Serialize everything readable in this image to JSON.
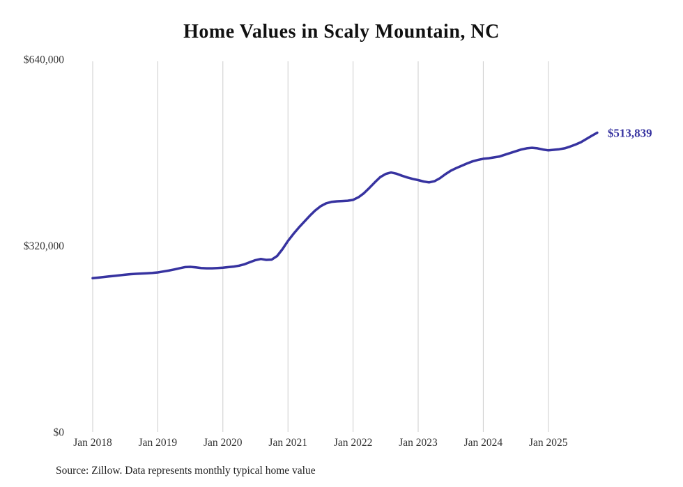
{
  "chart_data": {
    "type": "line",
    "title": "Home Values in Scaly Mountain, NC",
    "source_note": "Source: Zillow. Data represents monthly typical home value",
    "end_label": "$513,839",
    "line_color": "#3733a0",
    "grid_color": "#cccccc",
    "tick_color": "#333333",
    "x_tick_labels": [
      "Jan 2018",
      "Jan 2019",
      "Jan 2020",
      "Jan 2021",
      "Jan 2022",
      "Jan 2023",
      "Jan 2024",
      "Jan 2025"
    ],
    "y_tick_labels": [
      "$640,000",
      "$320,000",
      "$0"
    ],
    "y_ticks": [
      640000,
      320000,
      0
    ],
    "ylim": [
      0,
      640000
    ],
    "grid": "vertical-only",
    "legend": "none",
    "frequency": "monthly",
    "x_start": "2018-01",
    "x_end": "2025-10",
    "series": [
      {
        "name": "Typical home value",
        "values": [
          264000,
          265000,
          266000,
          267000,
          268000,
          269000,
          270000,
          271000,
          271500,
          272000,
          272500,
          273000,
          274000,
          275500,
          277000,
          279000,
          281000,
          283000,
          283500,
          282500,
          281500,
          281000,
          281000,
          281500,
          282000,
          283000,
          284000,
          285500,
          288000,
          291500,
          295000,
          297000,
          295500,
          296000,
          302000,
          314000,
          328000,
          340000,
          351000,
          361000,
          371000,
          380000,
          387500,
          392500,
          395000,
          396000,
          396500,
          397000,
          398500,
          403000,
          410000,
          419000,
          428500,
          437500,
          443000,
          445500,
          443500,
          440000,
          437000,
          434500,
          432500,
          430000,
          428500,
          430500,
          435500,
          442500,
          448500,
          453000,
          457000,
          461000,
          464500,
          467000,
          469000,
          470000,
          471500,
          473000,
          476000,
          479000,
          482000,
          485000,
          487000,
          488000,
          487000,
          485000,
          483500,
          484500,
          485500,
          487000,
          490000,
          493500,
          497500,
          503000,
          508500,
          513839
        ]
      }
    ]
  }
}
